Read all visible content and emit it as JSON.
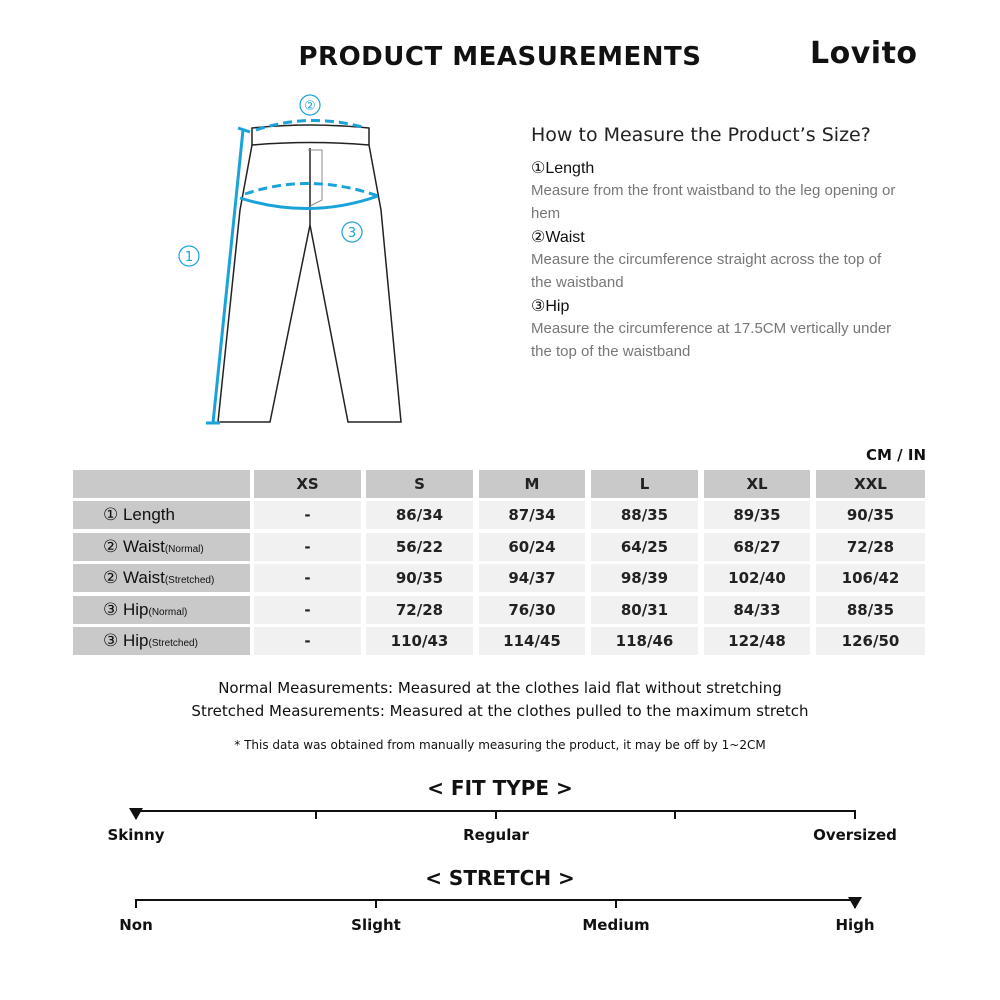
{
  "header": {
    "title": "PRODUCT MEASUREMENTS",
    "logo": "Lovito"
  },
  "diagram": {
    "markers": [
      "①",
      "②",
      "③"
    ],
    "accent_color": "#1aa3d9"
  },
  "guide": {
    "title": "How to Measure the Product’s Size?",
    "items": [
      {
        "heading": "①Length",
        "desc": "Measure from the front waistband to the leg opening or hem"
      },
      {
        "heading": "②Waist",
        "desc": "Measure the circumference straight across the top of the waistband"
      },
      {
        "heading": "③Hip",
        "desc": "Measure the circumference at 17.5CM vertically under the top of the waistband"
      }
    ]
  },
  "table": {
    "unit": "CM / IN",
    "sizes": [
      "XS",
      "S",
      "M",
      "L",
      "XL",
      "XXL"
    ],
    "rows": [
      {
        "label": "① Length",
        "sub": "",
        "values": [
          "-",
          "86/34",
          "87/34",
          "88/35",
          "89/35",
          "90/35"
        ]
      },
      {
        "label": "② Waist",
        "sub": "(Normal)",
        "values": [
          "-",
          "56/22",
          "60/24",
          "64/25",
          "68/27",
          "72/28"
        ]
      },
      {
        "label": "② Waist",
        "sub": "(Stretched)",
        "values": [
          "-",
          "90/35",
          "94/37",
          "98/39",
          "102/40",
          "106/42"
        ]
      },
      {
        "label": "③ Hip",
        "sub": "(Normal)",
        "values": [
          "-",
          "72/28",
          "76/30",
          "80/31",
          "84/33",
          "88/35"
        ]
      },
      {
        "label": "③ Hip",
        "sub": "(Stretched)",
        "values": [
          "-",
          "110/43",
          "114/45",
          "118/46",
          "122/48",
          "126/50"
        ]
      }
    ]
  },
  "notes": {
    "normal": "Normal Measurements: Measured at the clothes laid flat without stretching",
    "stretched": "Stretched  Measurements: Measured at the clothes pulled to the maximum stretch",
    "disclaimer": "* This data was obtained from manually measuring the product, it may be off by 1~2CM"
  },
  "fit_type": {
    "title": "< FIT TYPE >",
    "labels": [
      "Skinny",
      "Regular",
      "Oversized"
    ],
    "selected": "Skinny"
  },
  "stretch": {
    "title": "< STRETCH >",
    "labels": [
      "Non",
      "Slight",
      "Medium",
      "High"
    ],
    "selected": "High"
  }
}
